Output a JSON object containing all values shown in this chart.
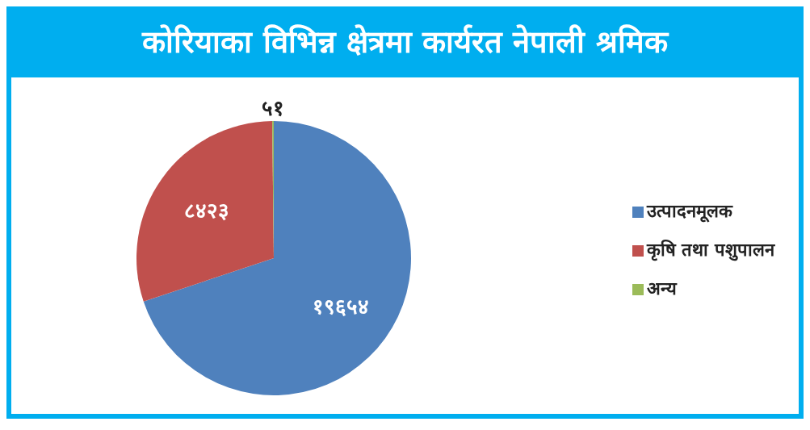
{
  "chart_data": {
    "type": "pie",
    "title": "कोरियाका विभिन्न क्षेत्रमा कार्यरत नेपाली श्रमिक",
    "categories": [
      "उत्पादनमूलक",
      "कृषि तथा पशुपालन",
      "अन्य"
    ],
    "values": [
      19654,
      8423,
      51
    ],
    "colors": [
      "#4f81bd",
      "#c0504d",
      "#9bbb59"
    ],
    "value_labels": [
      "१९६५४",
      "८४२३",
      "५१"
    ],
    "legend": "right"
  }
}
